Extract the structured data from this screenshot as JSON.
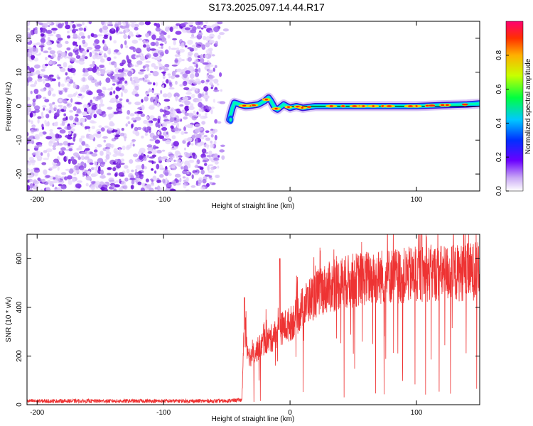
{
  "title": "S173.2025.097.14.44.R17",
  "colors": {
    "scatter": "#8b3de6",
    "trace": "#ee3333",
    "axis": "#000000",
    "track": "#00ffb0"
  },
  "chart_data": [
    {
      "type": "heatmap",
      "xlabel": "Height of straight line (km)",
      "ylabel": "Frequency (Hz)",
      "xlim": [
        -208,
        150
      ],
      "ylim": [
        -25,
        25
      ],
      "xticks": [
        {
          "value": -200,
          "label": "-200"
        },
        {
          "value": -100,
          "label": "-100"
        },
        {
          "value": 0,
          "label": "0"
        },
        {
          "value": 100,
          "label": "100"
        }
      ],
      "yticks": [
        {
          "value": -20,
          "label": "-20"
        },
        {
          "value": -10,
          "label": "-10"
        },
        {
          "value": 0,
          "label": "0"
        },
        {
          "value": 10,
          "label": "10"
        },
        {
          "value": 20,
          "label": "20"
        }
      ],
      "noise_region_x": [
        -208,
        -50
      ],
      "track": {
        "x": [
          -48,
          -46,
          -44,
          -42,
          -40,
          -35,
          -30,
          -25,
          -20,
          -17,
          -15,
          -12,
          -10,
          -5,
          0,
          5,
          10,
          20,
          40,
          60,
          80,
          100,
          120,
          140,
          150
        ],
        "y": [
          -4,
          -1,
          1,
          0.8,
          0.5,
          0,
          0.2,
          0.5,
          1.5,
          2.5,
          1.5,
          -0.5,
          -1,
          0.5,
          -0.5,
          0,
          -0.5,
          0,
          0,
          0,
          0,
          0,
          0.3,
          0.5,
          0.8
        ]
      },
      "colorbar": {
        "label": "Normalized spectral amplitude",
        "range": [
          0,
          1
        ],
        "ticks": [
          {
            "value": 0.0,
            "label": "0.0"
          },
          {
            "value": 0.2,
            "label": "0.2"
          },
          {
            "value": 0.4,
            "label": "0.4"
          },
          {
            "value": 0.6,
            "label": "0.6"
          },
          {
            "value": 0.8,
            "label": "0.8"
          }
        ]
      }
    },
    {
      "type": "line",
      "xlabel": "Height of straight line (km)",
      "ylabel": "SNR (10 * v/v)",
      "xlim": [
        -208,
        150
      ],
      "ylim": [
        0,
        700
      ],
      "xticks": [
        {
          "value": -200,
          "label": "-200"
        },
        {
          "value": -100,
          "label": "-100"
        },
        {
          "value": 0,
          "label": "0"
        },
        {
          "value": 100,
          "label": "100"
        }
      ],
      "yticks": [
        {
          "value": 0,
          "label": "0"
        },
        {
          "value": 200,
          "label": "200"
        },
        {
          "value": 400,
          "label": "400"
        },
        {
          "value": 600,
          "label": "600"
        }
      ],
      "series": [
        {
          "x": [
            -208,
            -150,
            -100,
            -52,
            -38,
            -37,
            -36,
            -34,
            -32,
            -30,
            -25,
            -20,
            -15,
            -10,
            -5,
            0,
            5,
            10,
            15,
            20,
            25,
            30,
            40,
            50,
            60,
            70,
            80,
            90,
            100,
            110,
            120,
            130,
            140,
            150
          ],
          "y": [
            15,
            15,
            15,
            15,
            20,
            200,
            350,
            240,
            200,
            200,
            230,
            260,
            270,
            300,
            320,
            330,
            360,
            400,
            430,
            450,
            470,
            480,
            500,
            510,
            520,
            525,
            530,
            530,
            535,
            540,
            540,
            540,
            545,
            550
          ]
        }
      ]
    }
  ]
}
